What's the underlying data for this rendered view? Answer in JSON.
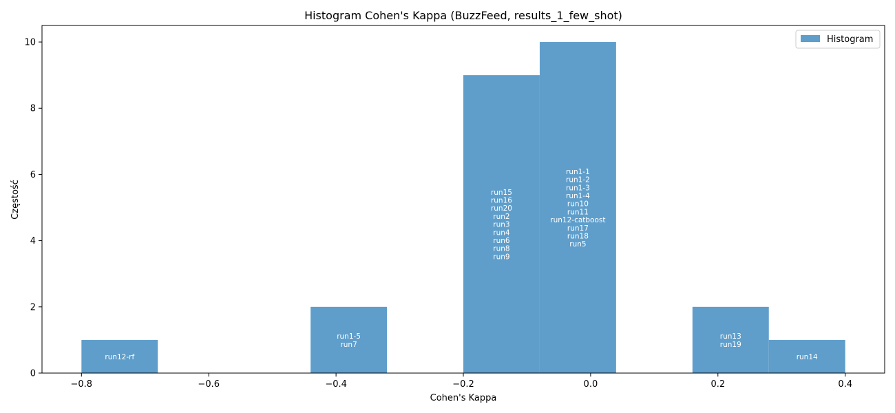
{
  "chart_data": {
    "type": "bar",
    "title": "Histogram Cohen's Kappa (BuzzFeed, results_1_few_shot)",
    "xlabel": "Cohen's Kappa",
    "ylabel": "Częstość",
    "xlim": [
      -0.862,
      0.462
    ],
    "ylim": [
      0,
      10.5
    ],
    "xticks": [
      -0.8,
      -0.6,
      -0.4,
      -0.2,
      0.0,
      0.2,
      0.4
    ],
    "xtick_labels": [
      "−0.8",
      "−0.6",
      "−0.4",
      "−0.2",
      "0.0",
      "0.2",
      "0.4"
    ],
    "yticks": [
      0,
      2,
      4,
      6,
      8,
      10
    ],
    "ytick_labels": [
      "0",
      "2",
      "4",
      "6",
      "8",
      "10"
    ],
    "bar_color": "#5f9ecb",
    "legend": {
      "label": "Histogram",
      "position": "top-right"
    },
    "grid": false,
    "bins": [
      {
        "x0": -0.8,
        "x1": -0.68,
        "count": 1,
        "labels": [
          "run12-rf"
        ]
      },
      {
        "x0": -0.44,
        "x1": -0.32,
        "count": 2,
        "labels": [
          "run1-5",
          "run7"
        ]
      },
      {
        "x0": -0.2,
        "x1": -0.08,
        "count": 9,
        "labels": [
          "run15",
          "run16",
          "run20",
          "run2",
          "run3",
          "run4",
          "run6",
          "run8",
          "run9"
        ]
      },
      {
        "x0": -0.08,
        "x1": 0.04,
        "count": 10,
        "labels": [
          "run1-1",
          "run1-2",
          "run1-3",
          "run1-4",
          "run10",
          "run11",
          "run12-catboost",
          "run17",
          "run18",
          "run5"
        ]
      },
      {
        "x0": 0.16,
        "x1": 0.28,
        "count": 2,
        "labels": [
          "run13",
          "run19"
        ]
      },
      {
        "x0": 0.28,
        "x1": 0.4,
        "count": 1,
        "labels": [
          "run14"
        ]
      }
    ]
  }
}
